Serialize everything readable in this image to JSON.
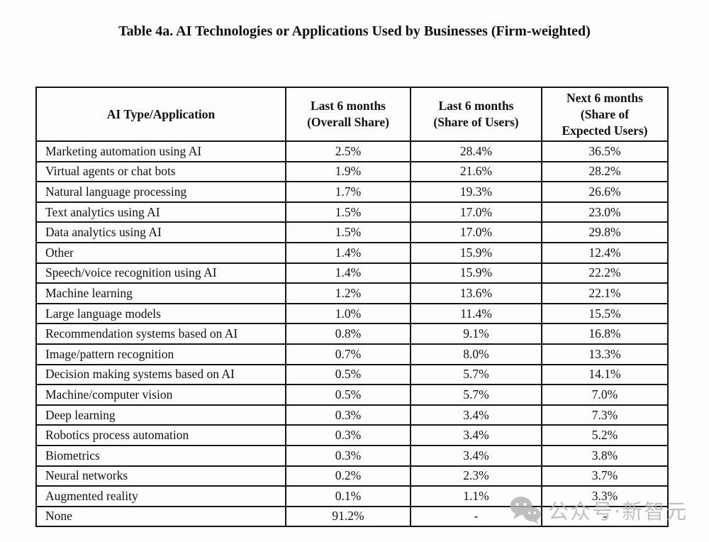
{
  "title": "Table 4a. AI Technologies or Applications Used by Businesses (Firm-weighted)",
  "table": {
    "headers": [
      {
        "lines": [
          "AI Type/Application"
        ]
      },
      {
        "lines": [
          "Last 6 months",
          "(Overall Share)"
        ]
      },
      {
        "lines": [
          "Last 6 months",
          "(Share of Users)"
        ]
      },
      {
        "lines": [
          "Next 6 months",
          "(Share of",
          "Expected Users)"
        ]
      }
    ],
    "rows": [
      [
        "Marketing automation using AI",
        "2.5%",
        "28.4%",
        "36.5%"
      ],
      [
        "Virtual agents or chat bots",
        "1.9%",
        "21.6%",
        "28.2%"
      ],
      [
        "Natural language processing",
        "1.7%",
        "19.3%",
        "26.6%"
      ],
      [
        "Text analytics using AI",
        "1.5%",
        "17.0%",
        "23.0%"
      ],
      [
        "Data analytics using AI",
        "1.5%",
        "17.0%",
        "29.8%"
      ],
      [
        "Other",
        "1.4%",
        "15.9%",
        "12.4%"
      ],
      [
        "Speech/voice recognition using AI",
        "1.4%",
        "15.9%",
        "22.2%"
      ],
      [
        "Machine learning",
        "1.2%",
        "13.6%",
        "22.1%"
      ],
      [
        "Large language models",
        "1.0%",
        "11.4%",
        "15.5%"
      ],
      [
        "Recommendation systems based on AI",
        "0.8%",
        "9.1%",
        "16.8%"
      ],
      [
        "Image/pattern recognition",
        "0.7%",
        "8.0%",
        "13.3%"
      ],
      [
        "Decision making systems based on AI",
        "0.5%",
        "5.7%",
        "14.1%"
      ],
      [
        "Machine/computer vision",
        "0.5%",
        "5.7%",
        "7.0%"
      ],
      [
        "Deep learning",
        "0.3%",
        "3.4%",
        "7.3%"
      ],
      [
        "Robotics process automation",
        "0.3%",
        "3.4%",
        "5.2%"
      ],
      [
        "Biometrics",
        "0.3%",
        "3.4%",
        "3.8%"
      ],
      [
        "Neural networks",
        "0.2%",
        "2.3%",
        "3.7%"
      ],
      [
        "Augmented reality",
        "0.1%",
        "1.1%",
        "3.3%"
      ],
      [
        "None",
        "91.2%",
        "-",
        "-"
      ]
    ]
  },
  "watermark": {
    "icon": "wechat-icon",
    "text": "公众号·新智元",
    "color": "#b2b2b2"
  }
}
